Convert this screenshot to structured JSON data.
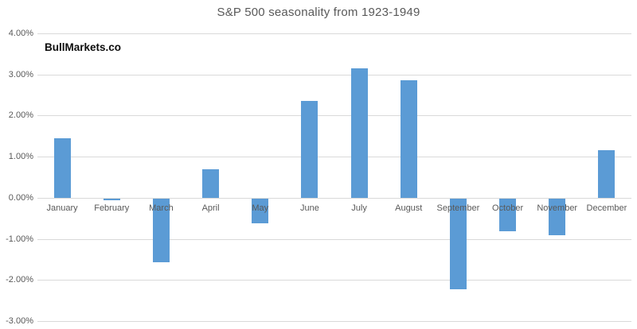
{
  "title": "S&P 500 seasonality from 1923-1949",
  "watermark": "BullMarkets.co",
  "chart_data": {
    "type": "bar",
    "title": "S&P 500 seasonality from 1923-1949",
    "categories": [
      "January",
      "February",
      "March",
      "April",
      "May",
      "June",
      "July",
      "August",
      "September",
      "October",
      "November",
      "December"
    ],
    "values": [
      1.45,
      -0.05,
      -1.55,
      0.7,
      -0.6,
      2.35,
      3.15,
      2.85,
      -2.2,
      -0.8,
      -0.9,
      1.15
    ],
    "xlabel": "",
    "ylabel": "",
    "ylim": [
      -3,
      4
    ],
    "y_tick_labels": [
      "4.00%",
      "3.00%",
      "2.00%",
      "1.00%",
      "0.00%",
      "-1.00%",
      "-2.00%",
      "-3.00%"
    ],
    "y_tick_values": [
      4,
      3,
      2,
      1,
      0,
      -1,
      -2,
      -3
    ],
    "grid": true,
    "legend": false,
    "bar_unit": "percent"
  },
  "colors": {
    "bar": "#5B9BD5",
    "gridline": "#D9D9D9",
    "axis_text": "#595959",
    "title_text": "#595959",
    "watermark_text": "#0d0d0d",
    "background": "#FFFFFF"
  }
}
